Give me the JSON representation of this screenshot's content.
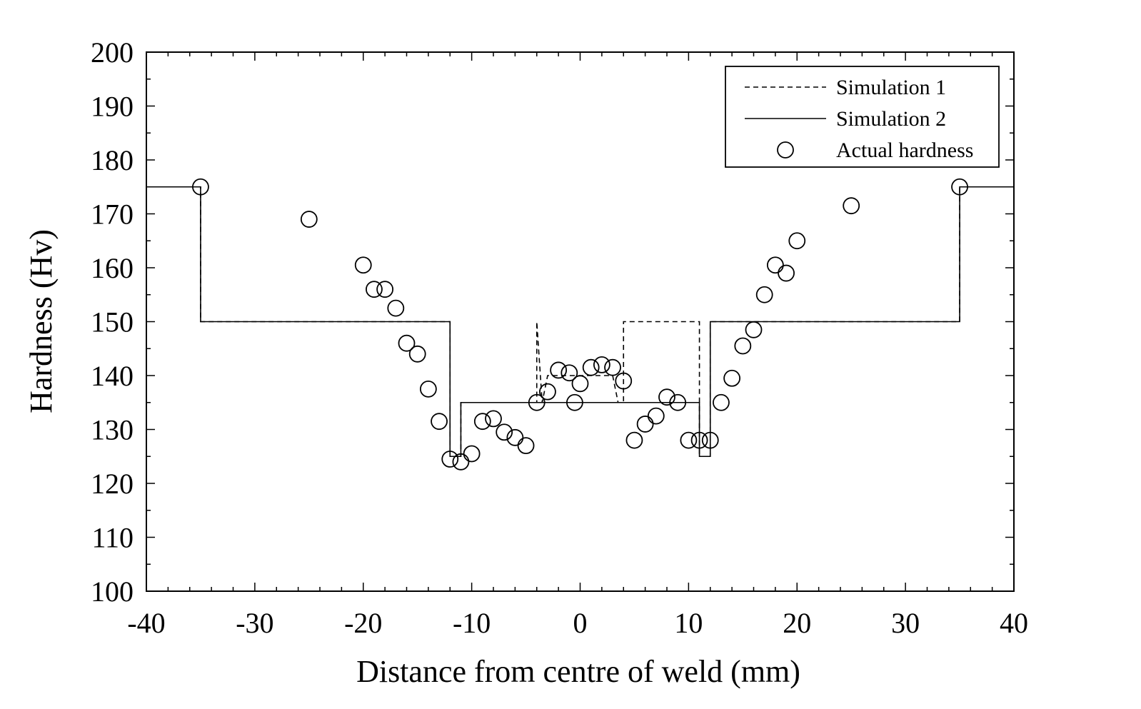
{
  "chart_data": {
    "type": "line",
    "title": "",
    "xlabel": "Distance from centre of weld (mm)",
    "ylabel": "Hardness (Hv)",
    "xlim": [
      -40,
      40
    ],
    "ylim": [
      100,
      200
    ],
    "x_ticks": [
      -40,
      -30,
      -20,
      -10,
      0,
      10,
      20,
      30,
      40
    ],
    "y_ticks": [
      100,
      110,
      120,
      130,
      140,
      150,
      160,
      170,
      180,
      190,
      200
    ],
    "grid": false,
    "legend_position": "top-right",
    "series": [
      {
        "name": "Simulation 1",
        "style": "dashed",
        "x": [
          -40,
          -35,
          -35,
          -12,
          -12,
          -11,
          -11,
          -4,
          -4,
          -3.5,
          -3,
          3,
          3.5,
          4,
          4,
          11,
          11,
          12,
          12,
          35,
          35,
          40
        ],
        "y": [
          175,
          175,
          150,
          150,
          125,
          125,
          135,
          135,
          150,
          135,
          140,
          140,
          135,
          135,
          150,
          150,
          125,
          125,
          150,
          150,
          175,
          175
        ]
      },
      {
        "name": "Simulation 2",
        "style": "solid",
        "x": [
          -40,
          -35,
          -35,
          -12,
          -12,
          -11,
          -11,
          11,
          11,
          12,
          12,
          35,
          35,
          40
        ],
        "y": [
          175,
          175,
          150,
          150,
          125,
          125,
          135,
          135,
          125,
          125,
          150,
          150,
          175,
          175
        ]
      },
      {
        "name": "Actual hardness",
        "style": "markers",
        "marker": "open-circle",
        "x": [
          -35,
          -25,
          -20,
          -19,
          -18,
          -17,
          -16,
          -15,
          -14,
          -13,
          -12,
          -11,
          -10,
          -9,
          -8,
          -7,
          -6,
          -5,
          -4,
          -3,
          -2,
          -1,
          -0.5,
          0,
          1,
          2,
          3,
          4,
          5,
          6,
          7,
          8,
          9,
          10,
          11,
          12,
          13,
          14,
          15,
          16,
          17,
          18,
          19,
          20,
          25,
          35
        ],
        "y": [
          175,
          169,
          160.5,
          156,
          156,
          152.5,
          146,
          144,
          137.5,
          131.5,
          124.5,
          124,
          125.5,
          131.5,
          132,
          129.5,
          128.5,
          127,
          135,
          137,
          141,
          140.5,
          135,
          138.5,
          141.5,
          142,
          141.5,
          139,
          128,
          131,
          132.5,
          136,
          135,
          128,
          128,
          128,
          135,
          139.5,
          145.5,
          148.5,
          155,
          160.5,
          159,
          165,
          171.5,
          175
        ]
      }
    ]
  }
}
